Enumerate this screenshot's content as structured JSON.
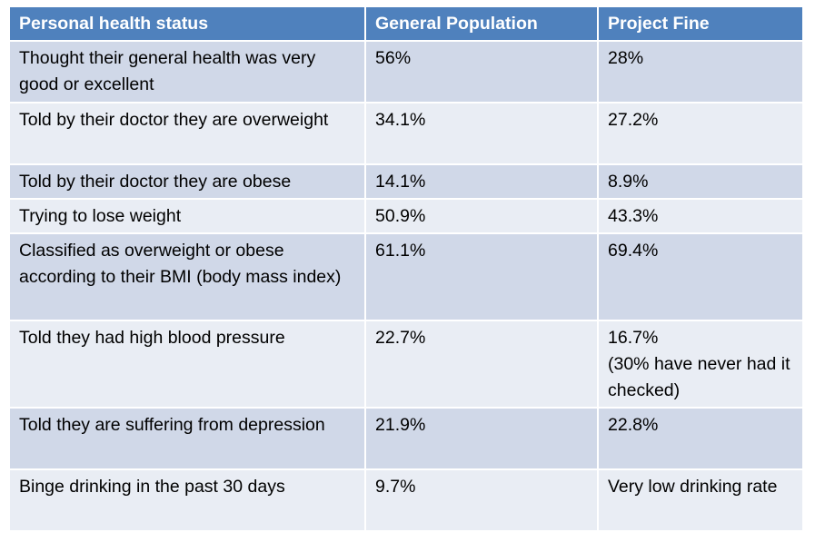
{
  "table": {
    "headers": [
      "Personal health status",
      "General Population",
      "Project Fine"
    ],
    "rows": [
      {
        "status": "Thought their general health was very good or excellent",
        "general": "56%",
        "project": "28%",
        "project_note": ""
      },
      {
        "status": "Told by their doctor they are overweight",
        "general": "34.1%",
        "project": "27.2%",
        "project_note": ""
      },
      {
        "status": "Told by their doctor they are obese",
        "general": "14.1%",
        "project": "8.9%",
        "project_note": ""
      },
      {
        "status": "Trying to lose weight",
        "general": "50.9%",
        "project": "43.3%",
        "project_note": ""
      },
      {
        "status": "Classified as overweight or obese according to their BMI (body mass index)",
        "general": "61.1%",
        "project": "69.4%",
        "project_note": ""
      },
      {
        "status": "Told they had high blood pressure",
        "general": "22.7%",
        "project": "16.7%",
        "project_note": "(30% have never had it checked)"
      },
      {
        "status": "Told they are suffering from depression",
        "general": "21.9%",
        "project": "22.8%",
        "project_note": ""
      },
      {
        "status": "Binge drinking in the past 30 days",
        "general": "9.7%",
        "project": "Very low drinking rate",
        "project_note": ""
      }
    ]
  },
  "colors": {
    "header_bg": "#4f81bd",
    "row_odd_bg": "#d0d8e8",
    "row_even_bg": "#e9edf4"
  }
}
